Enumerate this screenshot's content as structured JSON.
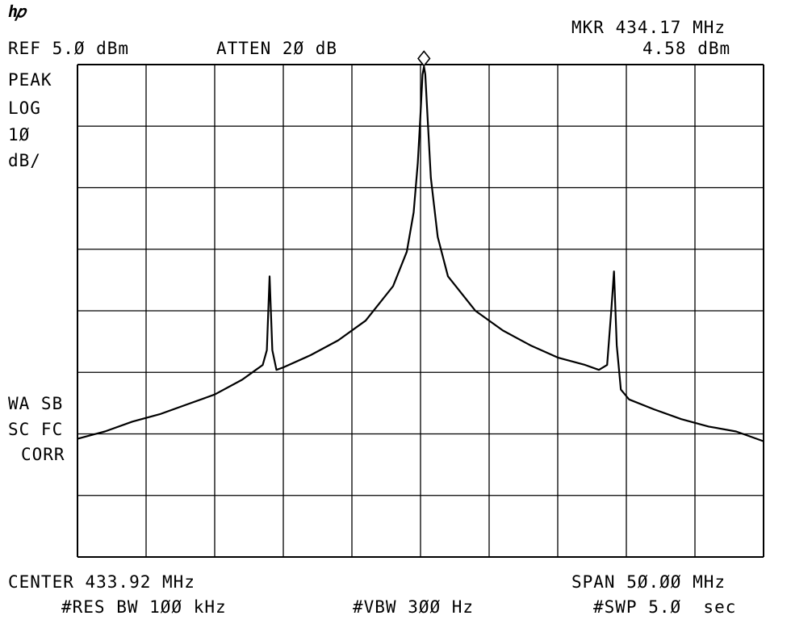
{
  "header": {
    "logo": "ℎ𝑝",
    "ref": "REF 5.Ø dBm",
    "atten": "ATTEN 2Ø dB",
    "marker_freq": "MKR 434.17 MHz",
    "marker_level": "4.58 dBm"
  },
  "left_labels": {
    "detector": "PEAK",
    "scale_type": "LOG",
    "scale_value": "1Ø",
    "scale_unit": "dB/",
    "wa_sb": "WA SB",
    "sc_fc": "SC FC",
    "corr": "CORR"
  },
  "footer": {
    "center": "CENTER 433.92 MHz",
    "span": "SPAN 5Ø.ØØ MHz",
    "res_bw": "#RES BW 1ØØ kHz",
    "vbw": "#VBW 3ØØ Hz",
    "sweep": "#SWP 5.Ø  sec"
  },
  "chart_data": {
    "type": "line",
    "x_unit": "MHz",
    "y_unit": "dBm",
    "xlim": [
      408.92,
      458.92
    ],
    "ylim": [
      -95,
      5
    ],
    "grid": true,
    "marker": {
      "x": 434.17,
      "y": 4.58
    },
    "series": [
      {
        "x": [
          408.92,
          410.92,
          412.92,
          414.92,
          416.92,
          418.92,
          420.92,
          421.92,
          422.42,
          422.72,
          422.92,
          423.12,
          423.42,
          423.92,
          425.92,
          427.92,
          429.92,
          431.92,
          432.92,
          433.42,
          433.72,
          433.92,
          434.07,
          434.17,
          434.27,
          434.42,
          434.67,
          435.17,
          435.92,
          437.92,
          439.92,
          441.92,
          443.92,
          445.92,
          446.92,
          447.52,
          447.82,
          448.02,
          448.22,
          448.52,
          449.12,
          450.92,
          452.92,
          454.92,
          456.92,
          458.92
        ],
        "y": [
          -71,
          -69.5,
          -67.5,
          -66,
          -64,
          -62,
          -59,
          -57,
          -56,
          -53,
          -38,
          -53,
          -57,
          -56.5,
          -54,
          -51,
          -47,
          -40,
          -33,
          -25,
          -15,
          -5,
          3,
          4.58,
          3,
          -5,
          -18,
          -30,
          -38,
          -45,
          -49,
          -52,
          -54.5,
          -56,
          -57,
          -56,
          -45,
          -37,
          -52,
          -61,
          -63,
          -65,
          -67,
          -68.5,
          -69.5,
          -71.5
        ]
      }
    ]
  }
}
